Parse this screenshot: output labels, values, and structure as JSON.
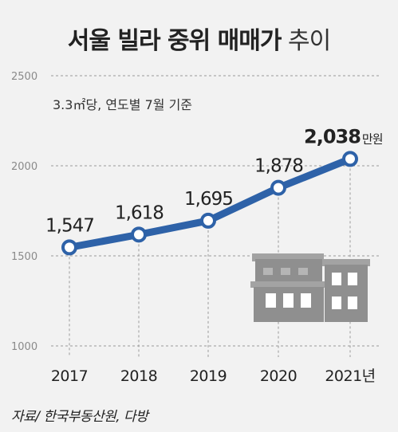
{
  "title_main": "서울 빌라 중위 매매가",
  "title_sub": "추이",
  "note": "3.3㎡당, 연도별 7월 기준",
  "source": "자료/ 한국부동산원, 다방",
  "colors": {
    "line": "#2e62a8",
    "grid": "#9a9a9a",
    "background": "#f2f2f2",
    "building": "#8f8f8f"
  },
  "icon": "building-icon",
  "chart_data": {
    "type": "line",
    "categories": [
      "2017",
      "2018",
      "2019",
      "2020",
      "2021년"
    ],
    "series": [
      {
        "values": [
          1547,
          1618,
          1695,
          1878,
          2038
        ],
        "labels": [
          "1,547",
          "1,618",
          "1,695",
          "1,878",
          "2,038"
        ]
      }
    ],
    "last_label_unit": "만원",
    "y_ticks": [
      "2500",
      "2000",
      "1500",
      "1000"
    ],
    "ylim": [
      1000,
      2500
    ],
    "grid": "horizontal dashed"
  }
}
